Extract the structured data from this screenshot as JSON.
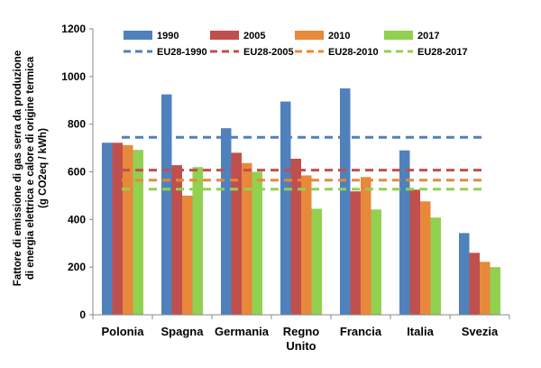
{
  "chart_data": {
    "type": "bar",
    "ylabel": [
      "Fattore di emissione di gas serra da produzione",
      "di energia elettrica e calore di origine termica",
      "(g CO2eq / kWh)"
    ],
    "ylim": [
      0,
      1200
    ],
    "yticks": [
      0,
      200,
      400,
      600,
      800,
      1000,
      1200
    ],
    "grid": false,
    "legend_position": "top",
    "categories": [
      [
        "Polonia"
      ],
      [
        "Spagna"
      ],
      [
        "Germania"
      ],
      [
        "Regno",
        "Unito"
      ],
      [
        "Francia"
      ],
      [
        "Italia"
      ],
      [
        "Svezia"
      ]
    ],
    "series": [
      {
        "name": "1990",
        "color": "#4f81bd",
        "values": [
          722,
          925,
          783,
          895,
          950,
          690,
          343
        ]
      },
      {
        "name": "2005",
        "color": "#c0504d",
        "values": [
          722,
          628,
          680,
          655,
          518,
          525,
          260
        ]
      },
      {
        "name": "2010",
        "color": "#e8883a",
        "values": [
          712,
          500,
          637,
          585,
          578,
          476,
          222
        ]
      },
      {
        "name": "2017",
        "color": "#92d050",
        "values": [
          692,
          620,
          600,
          445,
          442,
          408,
          200
        ]
      }
    ],
    "reference_lines": [
      {
        "name": "EU28-1990",
        "color": "#4f81bd",
        "value": 745
      },
      {
        "name": "EU28-2005",
        "color": "#c0504d",
        "value": 607
      },
      {
        "name": "EU28-2010",
        "color": "#e8883a",
        "value": 565
      },
      {
        "name": "EU28-2017",
        "color": "#92d050",
        "value": 527
      }
    ]
  }
}
